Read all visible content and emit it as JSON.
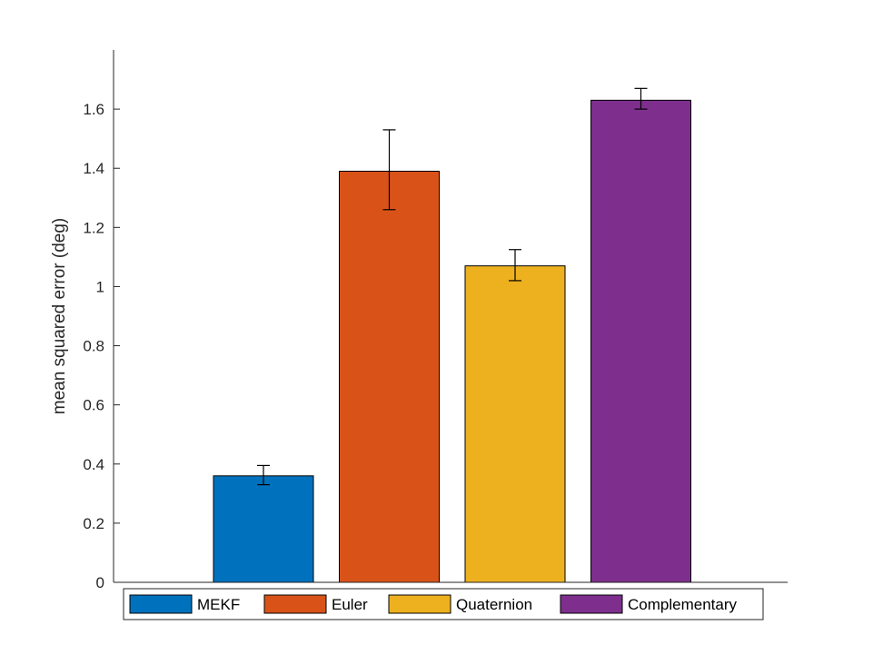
{
  "chart_data": {
    "type": "bar",
    "title": "",
    "xlabel": "",
    "ylabel": "mean squared error (deg)",
    "ylim": [
      0,
      1.8
    ],
    "yticks": [
      0,
      0.2,
      0.4,
      0.6,
      0.8,
      1,
      1.2,
      1.4,
      1.6
    ],
    "categories": [
      "MEKF",
      "Euler",
      "Quaternion",
      "Complementary"
    ],
    "values": [
      0.36,
      1.39,
      1.07,
      1.63
    ],
    "error_low": [
      0.33,
      1.26,
      1.02,
      1.6
    ],
    "error_high": [
      0.395,
      1.53,
      1.125,
      1.67
    ],
    "colors": [
      "#0072BD",
      "#D95319",
      "#EDB120",
      "#7E2F8E"
    ],
    "legend": {
      "position": "bottom-outside",
      "orientation": "horizontal",
      "entries": [
        "MEKF",
        "Euler",
        "Quaternion",
        "Complementary"
      ]
    },
    "grid": false
  }
}
